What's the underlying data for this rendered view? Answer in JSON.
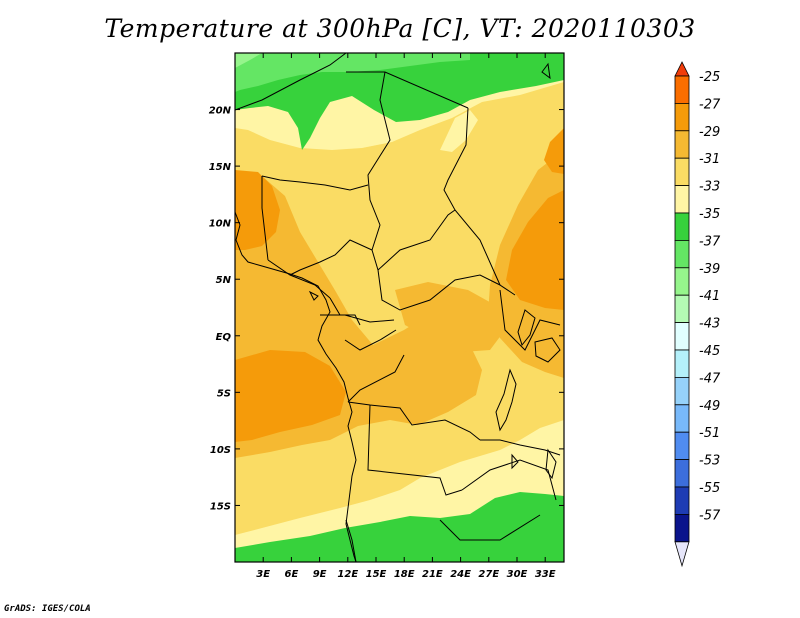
{
  "title": "Temperature at 300hPa [C], VT: 2020110303",
  "footer": "GrADS: IGES/COLA",
  "map": {
    "lon_range": [
      0,
      35
    ],
    "lat_range": [
      -20,
      25
    ],
    "lon_labels": [
      "3E",
      "6E",
      "9E",
      "12E",
      "15E",
      "18E",
      "21E",
      "24E",
      "27E",
      "30E",
      "33E"
    ],
    "lon_values": [
      3,
      6,
      9,
      12,
      15,
      18,
      21,
      24,
      27,
      30,
      33
    ],
    "lat_labels": [
      "20N",
      "15N",
      "10N",
      "5N",
      "EQ",
      "5S",
      "10S",
      "15S"
    ],
    "lat_values": [
      20,
      15,
      10,
      5,
      0,
      -5,
      -10,
      -15
    ]
  },
  "colorbar": {
    "labels": [
      "-25",
      "-27",
      "-29",
      "-31",
      "-33",
      "-35",
      "-37",
      "-39",
      "-41",
      "-43",
      "-45",
      "-47",
      "-49",
      "-51",
      "-53",
      "-55",
      "-57"
    ],
    "colors": [
      "#f03c0a",
      "#fa6e00",
      "#f59b0a",
      "#f5b932",
      "#fadc64",
      "#fff5a5",
      "#37d23c",
      "#64e664",
      "#96f58c",
      "#b4fab4",
      "#e1ffff",
      "#b4f0fa",
      "#96d2fa",
      "#78b9fa",
      "#508cf0",
      "#3c6edc",
      "#1e3cb4",
      "#0a148c",
      "#e6e6fa"
    ]
  }
}
